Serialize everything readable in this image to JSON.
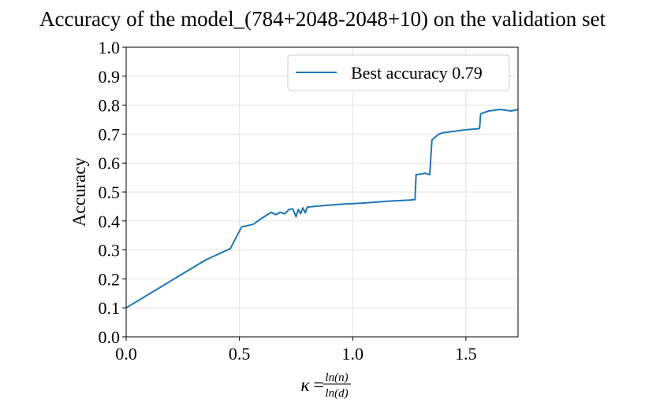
{
  "chart_data": {
    "type": "line",
    "title": "Accuracy of the model_(784+2048-2048+10) on the validation set",
    "xlabel": {
      "symbol": "κ",
      "equals": "=",
      "numerator": "ln(n)",
      "denominator": "ln(d)"
    },
    "ylabel": "Accuracy",
    "xlim": [
      0.0,
      1.73
    ],
    "ylim": [
      0.0,
      1.0
    ],
    "xticks": [
      0.0,
      0.5,
      1.0,
      1.5
    ],
    "xtick_labels": [
      "0.0",
      "0.5",
      "1.0",
      "1.5"
    ],
    "yticks": [
      0.0,
      0.1,
      0.2,
      0.3,
      0.4,
      0.5,
      0.6,
      0.7,
      0.8,
      0.9,
      1.0
    ],
    "ytick_labels": [
      "0.0",
      "0.1",
      "0.2",
      "0.3",
      "0.4",
      "0.5",
      "0.6",
      "0.7",
      "0.8",
      "0.9",
      "1.0"
    ],
    "grid": true,
    "legend_position": "top-right",
    "series": [
      {
        "name": "Best accuracy 0.79",
        "color": "#1f77b4",
        "x": [
          0.0,
          0.35,
          0.46,
          0.51,
          0.56,
          0.6,
          0.64,
          0.66,
          0.68,
          0.7,
          0.72,
          0.735,
          0.75,
          0.76,
          0.77,
          0.78,
          0.79,
          0.8,
          0.85,
          0.9,
          0.95,
          1.0,
          1.05,
          1.1,
          1.15,
          1.2,
          1.25,
          1.275,
          1.28,
          1.3,
          1.32,
          1.34,
          1.345,
          1.35,
          1.38,
          1.4,
          1.45,
          1.5,
          1.55,
          1.56,
          1.565,
          1.6,
          1.65,
          1.7,
          1.73
        ],
        "y": [
          0.1,
          0.265,
          0.305,
          0.38,
          0.388,
          0.41,
          0.43,
          0.422,
          0.43,
          0.425,
          0.44,
          0.442,
          0.415,
          0.44,
          0.425,
          0.445,
          0.428,
          0.448,
          0.452,
          0.455,
          0.458,
          0.46,
          0.462,
          0.465,
          0.468,
          0.47,
          0.472,
          0.474,
          0.56,
          0.562,
          0.565,
          0.56,
          0.62,
          0.68,
          0.7,
          0.705,
          0.71,
          0.715,
          0.718,
          0.72,
          0.77,
          0.78,
          0.785,
          0.78,
          0.785
        ]
      }
    ]
  }
}
